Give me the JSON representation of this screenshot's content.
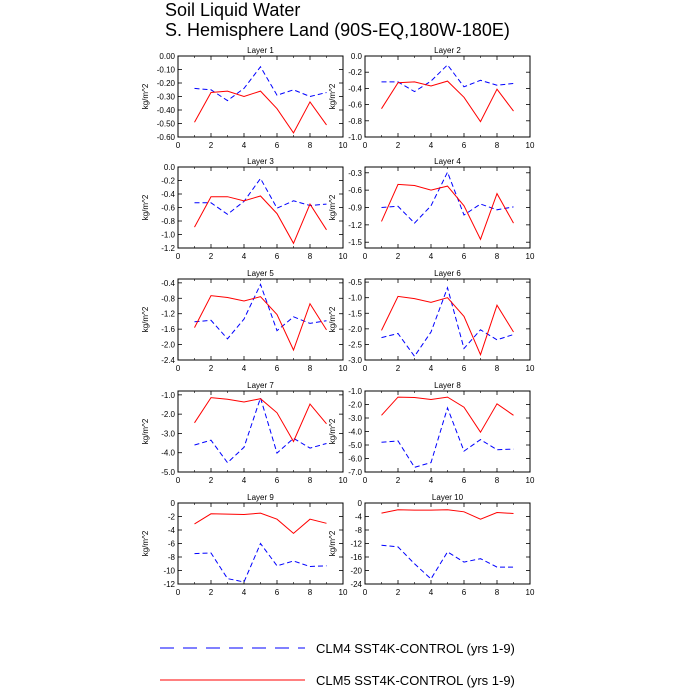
{
  "title": {
    "line1": "Soil Liquid Water",
    "line2": "S. Hemisphere Land (90S-EQ,180W-180E)"
  },
  "legend": [
    {
      "name": "CLM4 SST4K-CONTROL (yrs 1-9)",
      "color": "#0000ff",
      "style": "dashed"
    },
    {
      "name": "CLM5 SST4K-CONTROL (yrs 1-9)",
      "color": "#ff0000",
      "style": "solid"
    }
  ],
  "chart_data": [
    {
      "type": "line",
      "title": "Layer 1",
      "ylabel": "kg/m^2",
      "xlim": [
        0,
        10
      ],
      "xticks": [
        "0",
        "2",
        "4",
        "6",
        "8",
        "10"
      ],
      "ylim": [
        -0.6,
        0.0
      ],
      "yticks": [
        "0.00",
        "-0.10",
        "-0.20",
        "-0.30",
        "-0.40",
        "-0.50",
        "-0.60"
      ],
      "ytickvals": [
        0,
        -0.1,
        -0.2,
        -0.3,
        -0.4,
        -0.5,
        -0.6
      ],
      "x": [
        1,
        2,
        3,
        4,
        5,
        6,
        7,
        8,
        9
      ],
      "series": [
        {
          "name": "CLM4 SST4K-CONTROL (yrs 1-9)",
          "values": [
            -0.24,
            -0.25,
            -0.33,
            -0.24,
            -0.08,
            -0.29,
            -0.25,
            -0.3,
            -0.27
          ]
        },
        {
          "name": "CLM5 SST4K-CONTROL (yrs 1-9)",
          "values": [
            -0.49,
            -0.27,
            -0.26,
            -0.3,
            -0.26,
            -0.39,
            -0.57,
            -0.34,
            -0.51
          ]
        }
      ]
    },
    {
      "type": "line",
      "title": "Layer 2",
      "ylabel": "kg/m^2",
      "xlim": [
        0,
        10
      ],
      "xticks": [
        "0",
        "2",
        "4",
        "6",
        "8",
        "10"
      ],
      "ylim": [
        -1.0,
        0.0
      ],
      "yticks": [
        "0.0",
        "-0.2",
        "-0.4",
        "-0.6",
        "-0.8",
        "-1.0"
      ],
      "ytickvals": [
        0,
        -0.2,
        -0.4,
        -0.6,
        -0.8,
        -1.0
      ],
      "x": [
        1,
        2,
        3,
        4,
        5,
        6,
        7,
        8,
        9
      ],
      "series": [
        {
          "name": "CLM4 SST4K-CONTROL (yrs 1-9)",
          "values": [
            -0.32,
            -0.32,
            -0.44,
            -0.31,
            -0.11,
            -0.38,
            -0.3,
            -0.36,
            -0.34
          ]
        },
        {
          "name": "CLM5 SST4K-CONTROL (yrs 1-9)",
          "values": [
            -0.65,
            -0.33,
            -0.32,
            -0.37,
            -0.31,
            -0.51,
            -0.81,
            -0.41,
            -0.68
          ]
        }
      ]
    },
    {
      "type": "line",
      "title": "Layer 3",
      "ylabel": "kg/m^2",
      "xlim": [
        0,
        10
      ],
      "xticks": [
        "0",
        "2",
        "4",
        "6",
        "8",
        "10"
      ],
      "ylim": [
        -1.2,
        0.0
      ],
      "yticks": [
        "0.0",
        "-0.2",
        "-0.4",
        "-0.6",
        "-0.8",
        "-1.0",
        "-1.2"
      ],
      "ytickvals": [
        0,
        -0.2,
        -0.4,
        -0.6,
        -0.8,
        -1.0,
        -1.2
      ],
      "x": [
        1,
        2,
        3,
        4,
        5,
        6,
        7,
        8,
        9
      ],
      "series": [
        {
          "name": "CLM4 SST4K-CONTROL (yrs 1-9)",
          "values": [
            -0.53,
            -0.53,
            -0.7,
            -0.51,
            -0.17,
            -0.61,
            -0.5,
            -0.57,
            -0.55
          ]
        },
        {
          "name": "CLM5 SST4K-CONTROL (yrs 1-9)",
          "values": [
            -0.89,
            -0.44,
            -0.44,
            -0.5,
            -0.43,
            -0.69,
            -1.13,
            -0.55,
            -0.93
          ]
        }
      ]
    },
    {
      "type": "line",
      "title": "Layer 4",
      "ylabel": "kg/m^2",
      "xlim": [
        0,
        10
      ],
      "xticks": [
        "0",
        "2",
        "4",
        "6",
        "8",
        "10"
      ],
      "ylim": [
        -1.6,
        -0.2
      ],
      "yticks": [
        "-0.3",
        "-0.6",
        "-0.9",
        "-1.2",
        "-1.5"
      ],
      "ytickvals": [
        -0.3,
        -0.6,
        -0.9,
        -1.2,
        -1.5
      ],
      "x": [
        1,
        2,
        3,
        4,
        5,
        6,
        7,
        8,
        9
      ],
      "series": [
        {
          "name": "CLM4 SST4K-CONTROL (yrs 1-9)",
          "values": [
            -0.9,
            -0.88,
            -1.17,
            -0.87,
            -0.29,
            -1.03,
            -0.84,
            -0.94,
            -0.89
          ]
        },
        {
          "name": "CLM5 SST4K-CONTROL (yrs 1-9)",
          "values": [
            -1.14,
            -0.5,
            -0.52,
            -0.6,
            -0.53,
            -0.87,
            -1.45,
            -0.66,
            -1.17
          ]
        }
      ]
    },
    {
      "type": "line",
      "title": "Layer 5",
      "ylabel": "kg/m^2",
      "xlim": [
        0,
        10
      ],
      "xticks": [
        "0",
        "2",
        "4",
        "6",
        "8",
        "10"
      ],
      "ylim": [
        -2.4,
        -0.3
      ],
      "yticks": [
        "-0.4",
        "-0.8",
        "-1.2",
        "-1.6",
        "-2.0",
        "-2.4"
      ],
      "ytickvals": [
        -0.4,
        -0.8,
        -1.2,
        -1.6,
        -2.0,
        -2.4
      ],
      "x": [
        1,
        2,
        3,
        4,
        5,
        6,
        7,
        8,
        9
      ],
      "series": [
        {
          "name": "CLM4 SST4K-CONTROL (yrs 1-9)",
          "values": [
            -1.41,
            -1.37,
            -1.85,
            -1.34,
            -0.44,
            -1.64,
            -1.28,
            -1.45,
            -1.38
          ]
        },
        {
          "name": "CLM5 SST4K-CONTROL (yrs 1-9)",
          "values": [
            -1.56,
            -0.73,
            -0.78,
            -0.87,
            -0.76,
            -1.22,
            -2.14,
            -0.94,
            -1.62
          ]
        }
      ]
    },
    {
      "type": "line",
      "title": "Layer 6",
      "ylabel": "kg/m^2",
      "xlim": [
        0,
        10
      ],
      "xticks": [
        "0",
        "2",
        "4",
        "6",
        "8",
        "10"
      ],
      "ylim": [
        -3.0,
        -0.4
      ],
      "yticks": [
        "-0.5",
        "-1.0",
        "-1.5",
        "-2.0",
        "-2.5",
        "-3.0"
      ],
      "ytickvals": [
        -0.5,
        -1.0,
        -1.5,
        -2.0,
        -2.5,
        -3.0
      ],
      "x": [
        1,
        2,
        3,
        4,
        5,
        6,
        7,
        8,
        9
      ],
      "series": [
        {
          "name": "CLM4 SST4K-CONTROL (yrs 1-9)",
          "values": [
            -2.28,
            -2.15,
            -2.88,
            -2.1,
            -0.68,
            -2.63,
            -2.03,
            -2.35,
            -2.18
          ]
        },
        {
          "name": "CLM5 SST4K-CONTROL (yrs 1-9)",
          "values": [
            -2.05,
            -0.96,
            -1.03,
            -1.15,
            -1.0,
            -1.6,
            -2.83,
            -1.24,
            -2.1
          ]
        }
      ]
    },
    {
      "type": "line",
      "title": "Layer 7",
      "ylabel": "kg/m^2",
      "xlim": [
        0,
        10
      ],
      "xticks": [
        "0",
        "2",
        "4",
        "6",
        "8",
        "10"
      ],
      "ylim": [
        -5.0,
        -0.8
      ],
      "yticks": [
        "-1.0",
        "-2.0",
        "-3.0",
        "-4.0",
        "-5.0"
      ],
      "ytickvals": [
        -1,
        -2,
        -3,
        -4,
        -5
      ],
      "x": [
        1,
        2,
        3,
        4,
        5,
        6,
        7,
        8,
        9
      ],
      "series": [
        {
          "name": "CLM4 SST4K-CONTROL (yrs 1-9)",
          "values": [
            -3.6,
            -3.35,
            -4.52,
            -3.72,
            -1.16,
            -4.02,
            -3.25,
            -3.76,
            -3.52
          ]
        },
        {
          "name": "CLM5 SST4K-CONTROL (yrs 1-9)",
          "values": [
            -2.45,
            -1.14,
            -1.23,
            -1.37,
            -1.2,
            -1.93,
            -3.42,
            -1.48,
            -2.5
          ]
        }
      ]
    },
    {
      "type": "line",
      "title": "Layer 8",
      "ylabel": "kg/m^2",
      "xlim": [
        0,
        10
      ],
      "xticks": [
        "0",
        "2",
        "4",
        "6",
        "8",
        "10"
      ],
      "ylim": [
        -7.0,
        -1.0
      ],
      "yticks": [
        "-1.0",
        "-2.0",
        "-3.0",
        "-4.0",
        "-5.0",
        "-6.0",
        "-7.0"
      ],
      "ytickvals": [
        -1,
        -2,
        -3,
        -4,
        -5,
        -6,
        -7
      ],
      "x": [
        1,
        2,
        3,
        4,
        5,
        6,
        7,
        8,
        9
      ],
      "series": [
        {
          "name": "CLM4 SST4K-CONTROL (yrs 1-9)",
          "values": [
            -4.8,
            -4.7,
            -6.65,
            -6.3,
            -2.25,
            -5.45,
            -4.6,
            -5.35,
            -5.3
          ]
        },
        {
          "name": "CLM5 SST4K-CONTROL (yrs 1-9)",
          "values": [
            -2.8,
            -1.45,
            -1.48,
            -1.63,
            -1.45,
            -2.2,
            -4.05,
            -1.95,
            -2.8
          ]
        }
      ]
    },
    {
      "type": "line",
      "title": "Layer 9",
      "ylabel": "kg/m^2",
      "xlim": [
        0,
        10
      ],
      "xticks": [
        "0",
        "2",
        "4",
        "6",
        "8",
        "10"
      ],
      "ylim": [
        -12,
        0
      ],
      "yticks": [
        "0",
        "-2",
        "-4",
        "-6",
        "-8",
        "-10",
        "-12"
      ],
      "ytickvals": [
        0,
        -2,
        -4,
        -6,
        -8,
        -10,
        -12
      ],
      "x": [
        1,
        2,
        3,
        4,
        5,
        6,
        7,
        8,
        9
      ],
      "series": [
        {
          "name": "CLM4 SST4K-CONTROL (yrs 1-9)",
          "values": [
            -7.5,
            -7.4,
            -11.2,
            -11.7,
            -6.0,
            -9.3,
            -8.6,
            -9.4,
            -9.3
          ]
        },
        {
          "name": "CLM5 SST4K-CONTROL (yrs 1-9)",
          "values": [
            -3.1,
            -1.6,
            -1.65,
            -1.7,
            -1.5,
            -2.4,
            -4.5,
            -2.4,
            -3.0
          ]
        }
      ]
    },
    {
      "type": "line",
      "title": "Layer 10",
      "ylabel": "kg/m^2",
      "xlim": [
        0,
        10
      ],
      "xticks": [
        "0",
        "2",
        "4",
        "6",
        "8",
        "10"
      ],
      "ylim": [
        -24,
        0
      ],
      "yticks": [
        "0",
        "-4",
        "-8",
        "-12",
        "-16",
        "-20",
        "-24"
      ],
      "ytickvals": [
        0,
        -4,
        -8,
        -12,
        -16,
        -20,
        -24
      ],
      "x": [
        1,
        2,
        3,
        4,
        5,
        6,
        7,
        8,
        9
      ],
      "series": [
        {
          "name": "CLM4 SST4K-CONTROL (yrs 1-9)",
          "values": [
            -12.5,
            -13.0,
            -18.0,
            -22.5,
            -14.5,
            -17.5,
            -16.5,
            -19.0,
            -19.0
          ]
        },
        {
          "name": "CLM5 SST4K-CONTROL (yrs 1-9)",
          "values": [
            -3.0,
            -2.0,
            -2.1,
            -2.1,
            -2.0,
            -2.6,
            -4.8,
            -2.8,
            -3.1
          ]
        }
      ]
    }
  ]
}
